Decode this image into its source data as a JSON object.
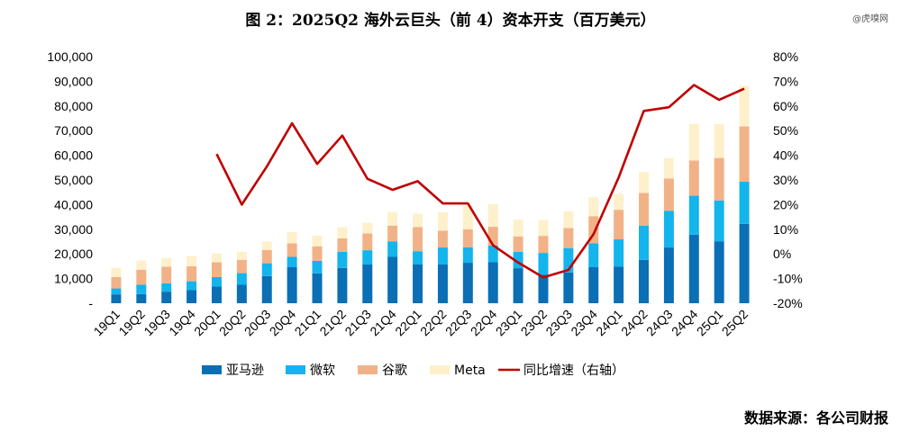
{
  "title": "图 2：2025Q2 海外云巨头（前 4）资本开支（百万美元）",
  "watermark": "@虎嗅网",
  "source": "数据来源：各公司财报",
  "colors": {
    "amazon": "#0a6fb5",
    "microsoft": "#14b4ec",
    "google": "#f2b287",
    "meta": "#fdf0cb",
    "growth": "#c00000"
  },
  "chart_data": {
    "type": "bar",
    "stacked": true,
    "categories": [
      "19Q1",
      "19Q2",
      "19Q3",
      "19Q4",
      "20Q1",
      "20Q2",
      "20Q3",
      "20Q4",
      "21Q1",
      "21Q2",
      "21Q3",
      "21Q4",
      "22Q1",
      "22Q2",
      "22Q3",
      "22Q4",
      "23Q1",
      "23Q2",
      "23Q3",
      "23Q4",
      "24Q1",
      "24Q2",
      "24Q3",
      "24Q4",
      "25Q1",
      "25Q2"
    ],
    "y_left": {
      "ylim": [
        0,
        100000
      ],
      "tick_labels": [
        "-",
        "10,000",
        "20,000",
        "30,000",
        "40,000",
        "50,000",
        "60,000",
        "70,000",
        "80,000",
        "90,000",
        "100,000"
      ]
    },
    "y_right": {
      "ylim": [
        -20,
        80
      ],
      "tick_labels": [
        "-20%",
        "-10%",
        "0%",
        "10%",
        "20%",
        "30%",
        "40%",
        "50%",
        "60%",
        "70%",
        "80%"
      ]
    },
    "series": [
      {
        "name": "亚马逊",
        "values": [
          3600,
          3700,
          4700,
          5300,
          6800,
          7500,
          11000,
          14600,
          12100,
          14300,
          15700,
          18800,
          15700,
          15700,
          16400,
          16600,
          14200,
          11500,
          12500,
          14600,
          14900,
          17600,
          22600,
          27800,
          25000,
          32200
        ]
      },
      {
        "name": "微软",
        "values": [
          2400,
          3800,
          3400,
          3600,
          3800,
          4700,
          5200,
          4200,
          5100,
          6500,
          5800,
          6300,
          5400,
          6900,
          6300,
          6800,
          6600,
          8900,
          9900,
          9700,
          11000,
          13900,
          14900,
          15800,
          16700,
          17100
        ]
      },
      {
        "name": "谷歌",
        "values": [
          4600,
          6100,
          6700,
          6100,
          6000,
          5400,
          5400,
          5500,
          5900,
          5500,
          6800,
          6400,
          9800,
          6800,
          7300,
          7600,
          6300,
          6900,
          8100,
          11000,
          12000,
          13200,
          13100,
          14300,
          17200,
          22400
        ]
      },
      {
        "name": "Meta",
        "values": [
          3800,
          3700,
          3500,
          4100,
          3600,
          3300,
          3400,
          4600,
          4300,
          4600,
          4300,
          5500,
          5400,
          7500,
          9500,
          9200,
          6800,
          6400,
          6800,
          7700,
          6400,
          8500,
          8300,
          14800,
          13700,
          16500
        ]
      },
      {
        "name": "同比增速（右轴）",
        "type": "line",
        "axis": "right",
        "values": [
          null,
          null,
          null,
          null,
          40.5,
          20,
          35.5,
          53,
          36.5,
          48,
          30.5,
          26,
          29.5,
          20.5,
          20.5,
          3.5,
          -3.5,
          -9.5,
          -6.5,
          8,
          31,
          58,
          59.5,
          68.5,
          62.5,
          67
        ]
      }
    ]
  }
}
